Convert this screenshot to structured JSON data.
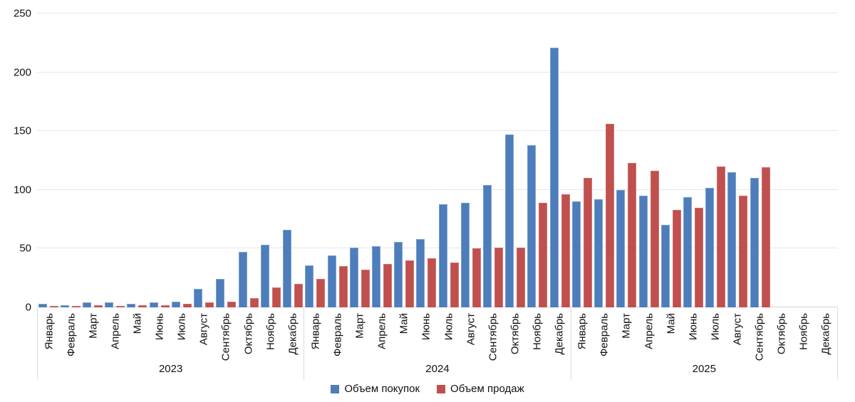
{
  "chart_data": {
    "type": "bar",
    "title": "",
    "xlabel": "",
    "ylabel": "",
    "ylim": [
      0,
      250
    ],
    "yticks": [
      0,
      50,
      100,
      150,
      200,
      250
    ],
    "grid": true,
    "legend_position": "bottom",
    "colors": {
      "purchases": "#4d7dba",
      "sales": "#c0504d",
      "gridline": "#e7e7e7",
      "axis_line": "#d2d2d2"
    },
    "month_labels": [
      "Январь",
      "Февраль",
      "Март",
      "Апрель",
      "Май",
      "Июнь",
      "Июль",
      "Август",
      "Сентябрь",
      "Октябрь",
      "Ноябрь",
      "Декабрь"
    ],
    "series": [
      {
        "name": "Объем покупок",
        "key": "purchases",
        "color": "#4d7dba"
      },
      {
        "name": "Объем продаж",
        "key": "sales",
        "color": "#c0504d"
      }
    ],
    "years": [
      {
        "label": "2023",
        "purchases": [
          3,
          2,
          4,
          4,
          3,
          4,
          5,
          16,
          24,
          47,
          53,
          66
        ],
        "sales": [
          1,
          1,
          2,
          1,
          2,
          2,
          3,
          4,
          5,
          8,
          17,
          20
        ]
      },
      {
        "label": "2024",
        "purchases": [
          36,
          44,
          51,
          52,
          56,
          58,
          88,
          89,
          104,
          147,
          138,
          221
        ],
        "sales": [
          24,
          35,
          32,
          37,
          40,
          42,
          38,
          50,
          51,
          51,
          89,
          96
        ]
      },
      {
        "label": "2025",
        "purchases": [
          90,
          92,
          100,
          95,
          70,
          94,
          102,
          115,
          110,
          null,
          null,
          null
        ],
        "sales": [
          110,
          156,
          123,
          116,
          83,
          85,
          120,
          95,
          119,
          null,
          null,
          null
        ]
      }
    ]
  }
}
